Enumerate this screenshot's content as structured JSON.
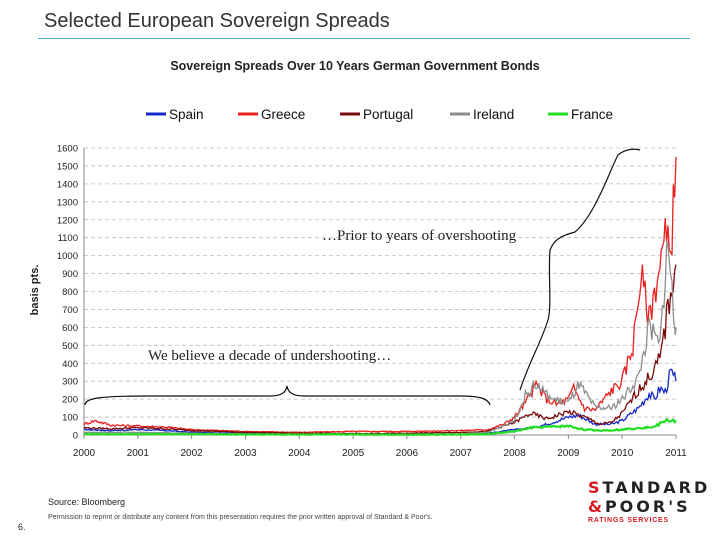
{
  "slide": {
    "title": "Selected European Sovereign Spreads",
    "source": "Source: Bloomberg",
    "permission": "Permission to reprint or distribute any content from this presentation requires the prior written approval of Standard & Poor's.",
    "page_number": "6."
  },
  "logo": {
    "line1_accent": "S",
    "line1_rest": "TANDARD",
    "line2_accent": "&",
    "line2_rest": "POOR'S",
    "line3": "RATINGS SERVICES"
  },
  "colors": {
    "Spain": "#1428c8",
    "Greece": "#e8201e",
    "Portugal": "#7a0a0a",
    "Ireland": "#8c8c8c",
    "France": "#22dd22"
  },
  "chart_data": {
    "type": "line",
    "title": "Sovereign Spreads Over 10 Years German Government Bonds",
    "xlabel": "",
    "ylabel": "basis pts.",
    "xlim": [
      2000,
      2011
    ],
    "ylim": [
      0,
      1600
    ],
    "xticks": [
      "2000",
      "2001",
      "2002",
      "2003",
      "2004",
      "2005",
      "2006",
      "2007",
      "2008",
      "2009",
      "2010",
      "2011"
    ],
    "yticks": [
      "0",
      "100",
      "200",
      "300",
      "400",
      "500",
      "600",
      "700",
      "800",
      "900",
      "1000",
      "1100",
      "1200",
      "1300",
      "1400",
      "1500",
      "1600"
    ],
    "grid": true,
    "legend": "top",
    "annotations": [
      {
        "text": "We believe a decade of undershooting…"
      },
      {
        "text": "…Prior to years of overshooting"
      }
    ],
    "series": [
      {
        "name": "Spain",
        "x": [
          2000,
          2000.5,
          2001,
          2001.5,
          2002,
          2003,
          2004,
          2005,
          2006,
          2007,
          2007.5,
          2008,
          2008.3,
          2008.6,
          2009,
          2009.2,
          2009.5,
          2009.8,
          2010,
          2010.3,
          2010.5,
          2010.6,
          2010.7,
          2010.8,
          2010.9,
          2011
        ],
        "values": [
          30,
          25,
          30,
          25,
          15,
          10,
          5,
          3,
          3,
          5,
          10,
          30,
          40,
          60,
          100,
          110,
          60,
          60,
          80,
          150,
          230,
          200,
          260,
          240,
          350,
          300
        ]
      },
      {
        "name": "Greece",
        "x": [
          2000,
          2000.2,
          2000.5,
          2001,
          2001.5,
          2002,
          2003,
          2004,
          2005,
          2006,
          2007,
          2007.5,
          2007.8,
          2008,
          2008.2,
          2008.4,
          2008.6,
          2008.8,
          2009,
          2009.1,
          2009.3,
          2009.5,
          2009.8,
          2010,
          2010.2,
          2010.35,
          2010.5,
          2010.6,
          2010.7,
          2010.8,
          2010.9,
          2011
        ],
        "values": [
          60,
          80,
          55,
          50,
          45,
          30,
          20,
          15,
          20,
          20,
          25,
          30,
          60,
          100,
          180,
          280,
          200,
          170,
          200,
          260,
          150,
          140,
          250,
          300,
          500,
          900,
          650,
          800,
          950,
          1100,
          1000,
          1550
        ]
      },
      {
        "name": "Portugal",
        "x": [
          2000,
          2000.5,
          2001,
          2001.5,
          2002,
          2003,
          2004,
          2005,
          2006,
          2007,
          2007.5,
          2008,
          2008.3,
          2008.6,
          2009,
          2009.3,
          2009.6,
          2009.8,
          2010,
          2010.3,
          2010.5,
          2010.7,
          2010.8,
          2010.9,
          2011
        ],
        "values": [
          40,
          35,
          40,
          35,
          25,
          15,
          10,
          8,
          10,
          15,
          20,
          70,
          120,
          90,
          130,
          100,
          60,
          70,
          120,
          250,
          320,
          420,
          600,
          800,
          950
        ]
      },
      {
        "name": "Ireland",
        "x": [
          2000,
          2001,
          2002,
          2003,
          2004,
          2005,
          2006,
          2007,
          2007.5,
          2008,
          2008.2,
          2008.4,
          2008.7,
          2009,
          2009.2,
          2009.5,
          2009.8,
          2010,
          2010.3,
          2010.5,
          2010.7,
          2010.8,
          2010.85,
          2010.95,
          2011
        ],
        "values": [
          15,
          15,
          10,
          5,
          3,
          2,
          3,
          5,
          15,
          80,
          220,
          280,
          200,
          180,
          280,
          150,
          150,
          200,
          320,
          600,
          500,
          900,
          1100,
          700,
          600
        ]
      },
      {
        "name": "France",
        "x": [
          2000,
          2001,
          2002,
          2003,
          2004,
          2005,
          2006,
          2007,
          2007.5,
          2008,
          2008.3,
          2008.6,
          2009,
          2009.3,
          2009.6,
          2010,
          2010.3,
          2010.6,
          2010.8,
          2011
        ],
        "values": [
          5,
          5,
          5,
          3,
          3,
          3,
          2,
          3,
          5,
          20,
          40,
          45,
          50,
          30,
          25,
          30,
          40,
          45,
          80,
          80
        ]
      }
    ]
  }
}
